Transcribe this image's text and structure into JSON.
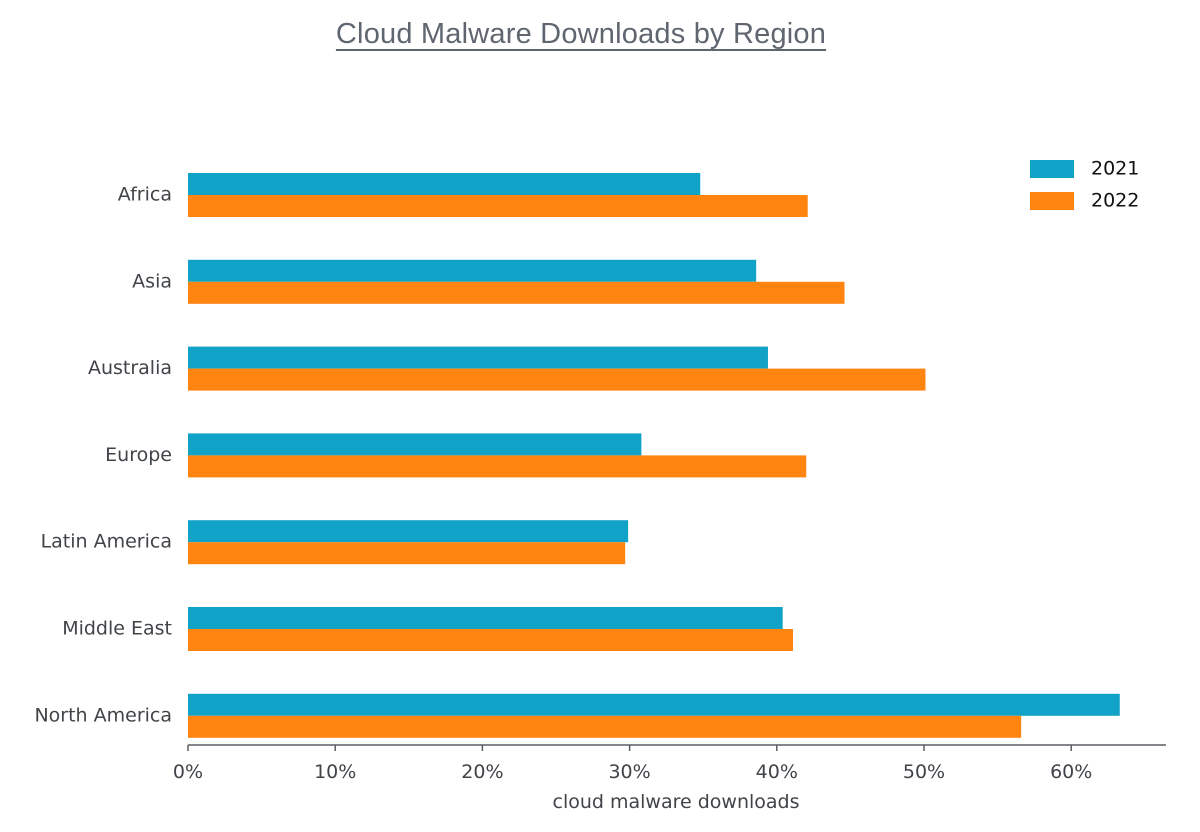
{
  "chart_data": {
    "type": "bar",
    "orientation": "horizontal",
    "title": "Cloud Malware Downloads by Region",
    "xlabel": "cloud malware downloads",
    "ylabel": "",
    "xlim": [
      0,
      66
    ],
    "x_ticks": [
      0,
      10,
      20,
      30,
      40,
      50,
      60
    ],
    "x_tick_labels": [
      "0%",
      "10%",
      "20%",
      "30%",
      "40%",
      "50%",
      "60%"
    ],
    "categories": [
      "Africa",
      "Asia",
      "Australia",
      "Europe",
      "Latin America",
      "Middle East",
      "North America"
    ],
    "series": [
      {
        "name": "2021",
        "color": "#10a3c7",
        "values": [
          34.8,
          38.6,
          39.4,
          30.8,
          29.9,
          40.4,
          63.3
        ]
      },
      {
        "name": "2022",
        "color": "#ff8410",
        "values": [
          42.1,
          44.6,
          50.1,
          42.0,
          29.7,
          41.1,
          56.6
        ]
      }
    ],
    "grid": false,
    "legend_position": "top-right"
  }
}
